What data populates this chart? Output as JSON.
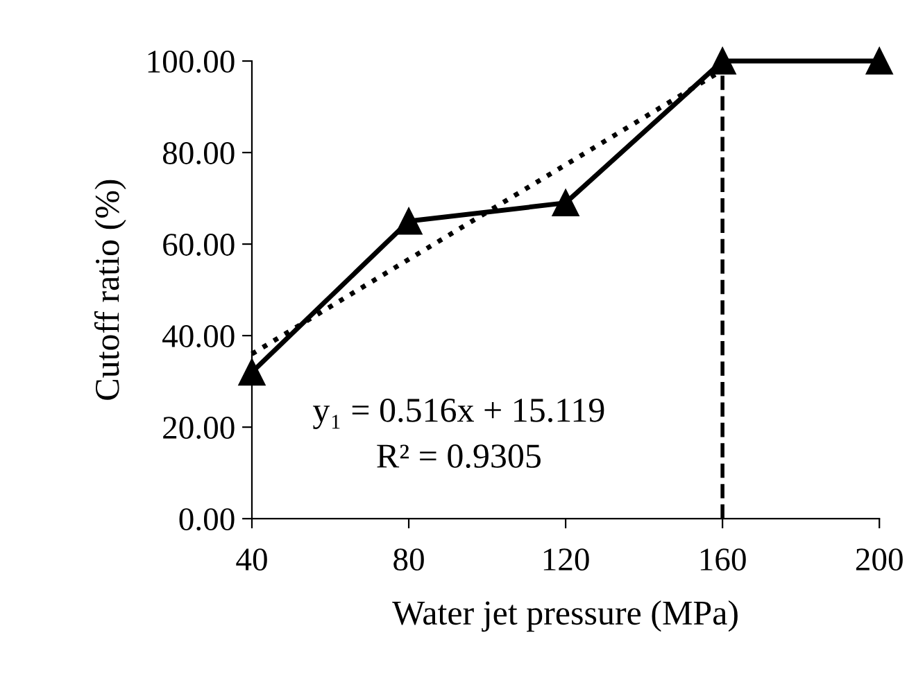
{
  "chart_data": {
    "type": "line",
    "xlabel": "Water jet pressure (MPa)",
    "ylabel": "Cutoff ratio (%)",
    "x": [
      40,
      80,
      120,
      160,
      200
    ],
    "series": [
      {
        "color": "#000000",
        "values": [
          32,
          65,
          69,
          100,
          100
        ],
        "marker": "triangle",
        "line_style": "solid"
      },
      {
        "type": "line",
        "color": "#000000",
        "x": [
          40,
          160
        ],
        "values": [
          36,
          98
        ],
        "marker": "none",
        "line_style": "dotted"
      }
    ],
    "xlim": [
      40,
      200
    ],
    "xticks": [
      40,
      80,
      120,
      160,
      200
    ],
    "ylim": [
      0,
      100
    ],
    "yticks": [
      {
        "value": 0,
        "label": "0.00"
      },
      {
        "value": 20,
        "label": "20.00"
      },
      {
        "value": 40,
        "label": "40.00"
      },
      {
        "value": 60,
        "label": "60.00"
      },
      {
        "value": 80,
        "label": "80.00"
      },
      {
        "value": 100,
        "label": "100.00"
      }
    ],
    "ref_lines": [
      {
        "axis": "x",
        "value": 160,
        "color": "#000000",
        "line_style": "dashed"
      }
    ],
    "annotations": [
      "y₁ = 0.516x + 15.119",
      "R² = 0.9305"
    ],
    "grid": false,
    "legend": false
  }
}
